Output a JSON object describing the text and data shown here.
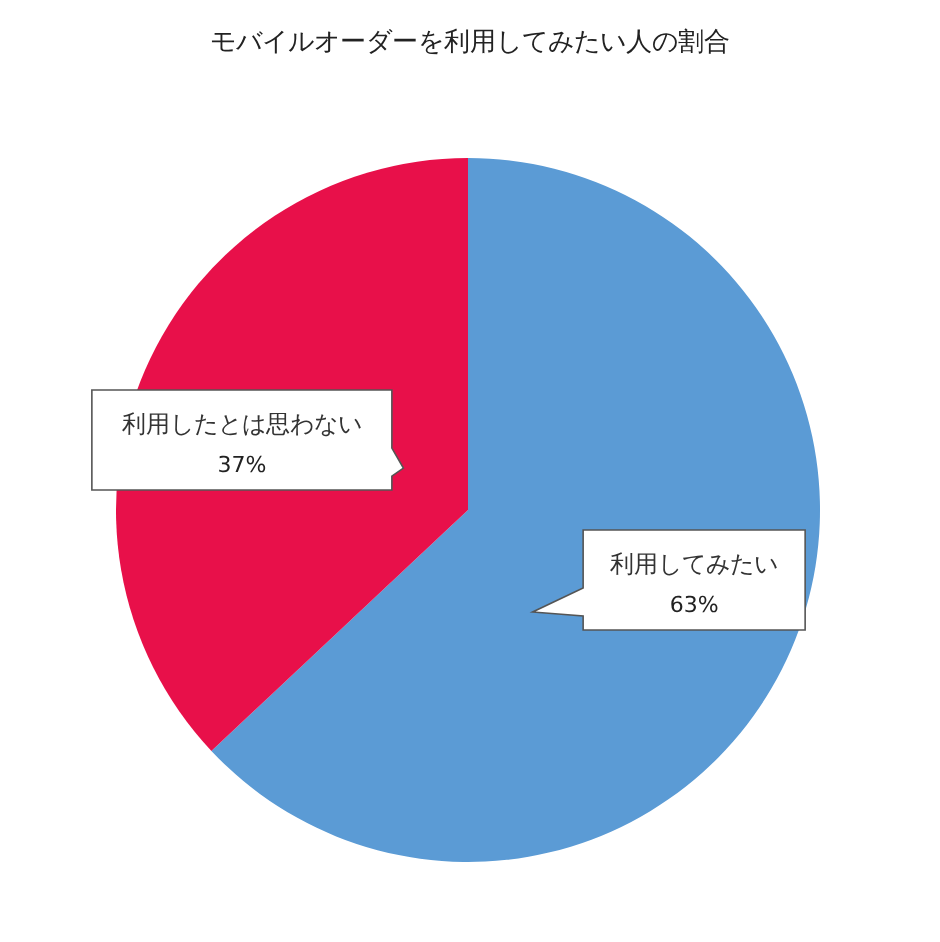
{
  "chart_data": {
    "type": "pie",
    "title": "モバイルオーダーを利用してみたい人の割合",
    "categories": [
      "利用してみたい",
      "利用したとは思わない"
    ],
    "values": [
      63,
      37
    ],
    "colors": [
      "#5b9bd5",
      "#e8104a"
    ],
    "value_labels": [
      "63%",
      "37%"
    ]
  }
}
